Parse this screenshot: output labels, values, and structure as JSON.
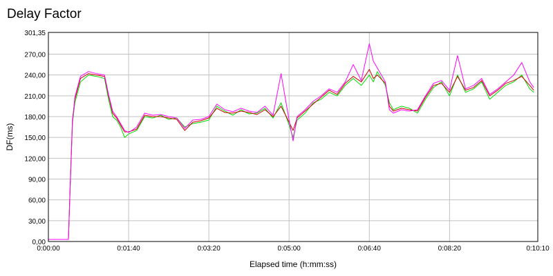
{
  "chart_data": {
    "type": "line",
    "title": "Delay Factor",
    "xlabel": "Elapsed time (h:mm:ss)",
    "ylabel": "DF(ms)",
    "xlim": [
      0,
      610
    ],
    "ylim": [
      0,
      301.35
    ],
    "x_ticks": [
      {
        "value": 0,
        "label": "0:00:00"
      },
      {
        "value": 100,
        "label": "0:01:40"
      },
      {
        "value": 200,
        "label": "0:03:20"
      },
      {
        "value": 300,
        "label": "0:05:00"
      },
      {
        "value": 400,
        "label": "0:06:40"
      },
      {
        "value": 500,
        "label": "0:08:20"
      },
      {
        "value": 610,
        "label": "0:10:10"
      }
    ],
    "y_ticks": [
      {
        "value": 0,
        "label": "0,00"
      },
      {
        "value": 30,
        "label": "30,00"
      },
      {
        "value": 60,
        "label": "60,00"
      },
      {
        "value": 90,
        "label": "90,00"
      },
      {
        "value": 120,
        "label": "120,00"
      },
      {
        "value": 150,
        "label": "150,00"
      },
      {
        "value": 180,
        "label": "180,00"
      },
      {
        "value": 210,
        "label": "210,00"
      },
      {
        "value": 240,
        "label": "240,00"
      },
      {
        "value": 270,
        "label": "270,00"
      },
      {
        "value": 301.35,
        "label": "301,35"
      }
    ],
    "grid": true,
    "legend": "none",
    "series": [
      {
        "color": "#00dd00",
        "x": [
          0,
          25,
          27,
          30,
          33,
          40,
          50,
          60,
          70,
          75,
          80,
          85,
          90,
          95,
          100,
          110,
          120,
          130,
          140,
          150,
          160,
          170,
          180,
          190,
          200,
          210,
          220,
          230,
          240,
          250,
          260,
          270,
          280,
          290,
          300,
          305,
          310,
          320,
          330,
          340,
          350,
          360,
          370,
          380,
          390,
          400,
          405,
          410,
          420,
          425,
          430,
          440,
          450,
          460,
          470,
          480,
          490,
          500,
          510,
          520,
          530,
          540,
          550,
          560,
          570,
          580,
          590,
          600,
          605
        ],
        "y": [
          3,
          3,
          70,
          170,
          200,
          230,
          240,
          238,
          235,
          205,
          180,
          175,
          165,
          150,
          155,
          160,
          180,
          178,
          182,
          176,
          178,
          165,
          170,
          172,
          175,
          195,
          188,
          182,
          190,
          184,
          185,
          192,
          178,
          200,
          168,
          150,
          175,
          185,
          200,
          205,
          215,
          210,
          225,
          235,
          225,
          240,
          230,
          245,
          225,
          200,
          190,
          195,
          192,
          185,
          205,
          222,
          230,
          210,
          240,
          215,
          220,
          230,
          205,
          215,
          225,
          230,
          240,
          220,
          215
        ]
      },
      {
        "color": "#cc0000",
        "x": [
          0,
          25,
          27,
          30,
          33,
          40,
          50,
          60,
          70,
          75,
          80,
          85,
          90,
          95,
          100,
          110,
          120,
          130,
          140,
          150,
          160,
          170,
          180,
          190,
          200,
          210,
          220,
          230,
          240,
          250,
          260,
          270,
          280,
          290,
          300,
          305,
          310,
          320,
          330,
          340,
          350,
          360,
          370,
          380,
          390,
          400,
          405,
          410,
          420,
          425,
          430,
          440,
          450,
          460,
          470,
          480,
          490,
          500,
          510,
          520,
          530,
          540,
          550,
          560,
          570,
          580,
          590,
          600,
          605
        ],
        "y": [
          3,
          3,
          75,
          175,
          205,
          235,
          242,
          240,
          238,
          210,
          185,
          178,
          168,
          158,
          158,
          162,
          182,
          180,
          180,
          178,
          176,
          160,
          172,
          174,
          178,
          192,
          186,
          185,
          188,
          186,
          183,
          190,
          180,
          195,
          172,
          160,
          178,
          188,
          198,
          208,
          218,
          212,
          228,
          238,
          230,
          248,
          235,
          240,
          228,
          195,
          188,
          192,
          190,
          188,
          208,
          225,
          228,
          215,
          238,
          218,
          222,
          232,
          210,
          218,
          228,
          232,
          238,
          225,
          218
        ]
      },
      {
        "color": "#ff00ff",
        "x": [
          0,
          25,
          27,
          30,
          33,
          40,
          50,
          60,
          70,
          75,
          80,
          85,
          90,
          95,
          100,
          110,
          120,
          130,
          140,
          150,
          160,
          170,
          180,
          190,
          200,
          210,
          220,
          230,
          240,
          250,
          260,
          270,
          280,
          290,
          300,
          305,
          310,
          320,
          330,
          340,
          350,
          360,
          370,
          380,
          390,
          400,
          405,
          410,
          420,
          425,
          430,
          440,
          450,
          460,
          470,
          480,
          490,
          500,
          510,
          520,
          530,
          540,
          550,
          560,
          570,
          580,
          590,
          600,
          605
        ],
        "y": [
          3,
          3,
          72,
          172,
          208,
          238,
          245,
          242,
          240,
          212,
          188,
          180,
          170,
          160,
          157,
          165,
          185,
          182,
          183,
          180,
          178,
          163,
          175,
          176,
          180,
          198,
          190,
          187,
          192,
          188,
          186,
          195,
          182,
          242,
          175,
          145,
          180,
          190,
          202,
          210,
          220,
          215,
          230,
          255,
          232,
          285,
          260,
          250,
          230,
          190,
          185,
          190,
          188,
          190,
          210,
          228,
          232,
          218,
          268,
          220,
          225,
          235,
          212,
          220,
          230,
          240,
          258,
          230,
          222
        ]
      }
    ]
  }
}
